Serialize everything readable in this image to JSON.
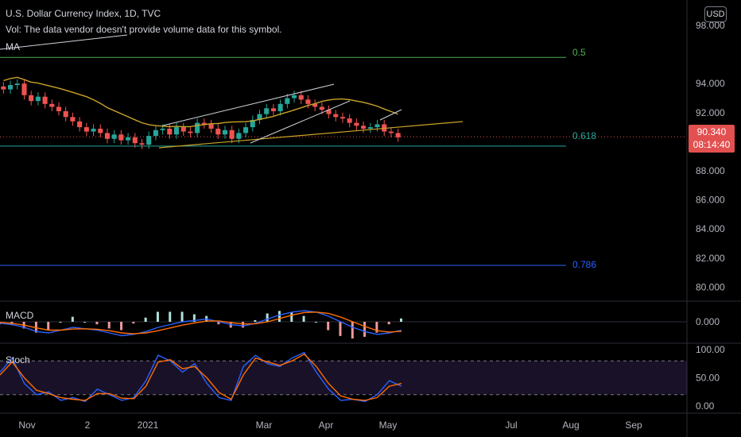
{
  "header": {
    "title": "U.S. Dollar Currency Index, 1D, TVC",
    "vol_notice": "Vol: The data vendor doesn't provide volume data for this symbol.",
    "ma_label": "MA",
    "currency": "USD"
  },
  "price_badge": {
    "price": "90.340",
    "countdown": "08:14:40"
  },
  "fib_levels": [
    {
      "label": "0.5",
      "value": 95.8,
      "color": "#4caf50"
    },
    {
      "label": "0.618",
      "value": 89.7,
      "color": "#26a69a"
    },
    {
      "label": "0.786",
      "value": 81.5,
      "color": "#2962ff"
    }
  ],
  "panels": {
    "macd_label": "MACD",
    "stoch_label": "Stoch"
  },
  "chart_data": [
    {
      "type": "candlestick",
      "title": "U.S. Dollar Currency Index, 1D, TVC",
      "y_ticks": [
        "98.000",
        "94.000",
        "92.000",
        "88.000",
        "86.000",
        "84.000",
        "82.000",
        "80.000"
      ],
      "x_ticks": [
        "Nov",
        "2",
        "2021",
        "Mar",
        "Apr",
        "May",
        "Jul",
        "Aug",
        "Sep"
      ],
      "close_series": [
        93.6,
        93.9,
        94.0,
        93.2,
        92.8,
        93.1,
        92.6,
        92.4,
        92.1,
        91.7,
        91.4,
        91.0,
        90.7,
        90.9,
        90.6,
        90.2,
        90.5,
        90.1,
        90.3,
        89.9,
        89.8,
        90.4,
        90.8,
        90.9,
        90.5,
        91.0,
        90.7,
        90.6,
        91.3,
        91.2,
        90.9,
        90.5,
        90.8,
        90.2,
        90.6,
        91.0,
        91.5,
        91.9,
        92.3,
        92.1,
        92.6,
        93.0,
        93.2,
        92.9,
        92.6,
        92.4,
        92.2,
        91.9,
        91.7,
        91.6,
        91.3,
        91.1,
        90.9,
        91.0,
        91.2,
        90.7,
        90.6,
        90.3
      ],
      "current_price": 90.34,
      "moving_average": {
        "label": "MA",
        "color": "#c9a227"
      },
      "fib_levels": [
        0.5,
        0.618,
        0.786
      ]
    },
    {
      "type": "line",
      "title": "MACD",
      "y_ticks": [
        "0.000"
      ],
      "series": [
        {
          "values": [
            -0.05,
            -0.1,
            -0.2,
            -0.35,
            -0.4,
            -0.3,
            -0.2,
            -0.25,
            -0.3,
            -0.4,
            -0.5,
            -0.45,
            -0.35,
            -0.2,
            -0.1,
            0.0,
            0.05,
            0.1,
            0.0,
            -0.1,
            -0.15,
            -0.05,
            0.1,
            0.25,
            0.35,
            0.4,
            0.35,
            0.2,
            0.0,
            -0.2,
            -0.35,
            -0.45,
            -0.4,
            -0.3
          ]
        },
        {
          "values": [
            -0.02,
            -0.06,
            -0.12,
            -0.22,
            -0.3,
            -0.3,
            -0.26,
            -0.25,
            -0.27,
            -0.32,
            -0.4,
            -0.43,
            -0.4,
            -0.32,
            -0.22,
            -0.12,
            -0.04,
            0.03,
            0.03,
            -0.03,
            -0.08,
            -0.07,
            0.0,
            0.12,
            0.24,
            0.33,
            0.35,
            0.3,
            0.17,
            0.0,
            -0.17,
            -0.32,
            -0.37,
            -0.34
          ]
        }
      ]
    },
    {
      "type": "line",
      "title": "Stoch",
      "y_ticks": [
        "100.00",
        "50.00",
        "0.00"
      ],
      "bands": [
        80,
        20
      ],
      "series": [
        {
          "values": [
            60,
            85,
            40,
            20,
            25,
            10,
            15,
            8,
            30,
            20,
            10,
            15,
            45,
            90,
            80,
            60,
            75,
            40,
            15,
            10,
            70,
            90,
            75,
            70,
            85,
            95,
            60,
            30,
            10,
            12,
            8,
            20,
            45,
            35
          ]
        },
        {
          "values": [
            55,
            78,
            50,
            28,
            22,
            15,
            12,
            10,
            22,
            22,
            14,
            13,
            35,
            78,
            82,
            66,
            70,
            50,
            24,
            12,
            55,
            85,
            78,
            72,
            80,
            92,
            70,
            40,
            18,
            12,
            10,
            15,
            35,
            40
          ]
        }
      ]
    }
  ]
}
